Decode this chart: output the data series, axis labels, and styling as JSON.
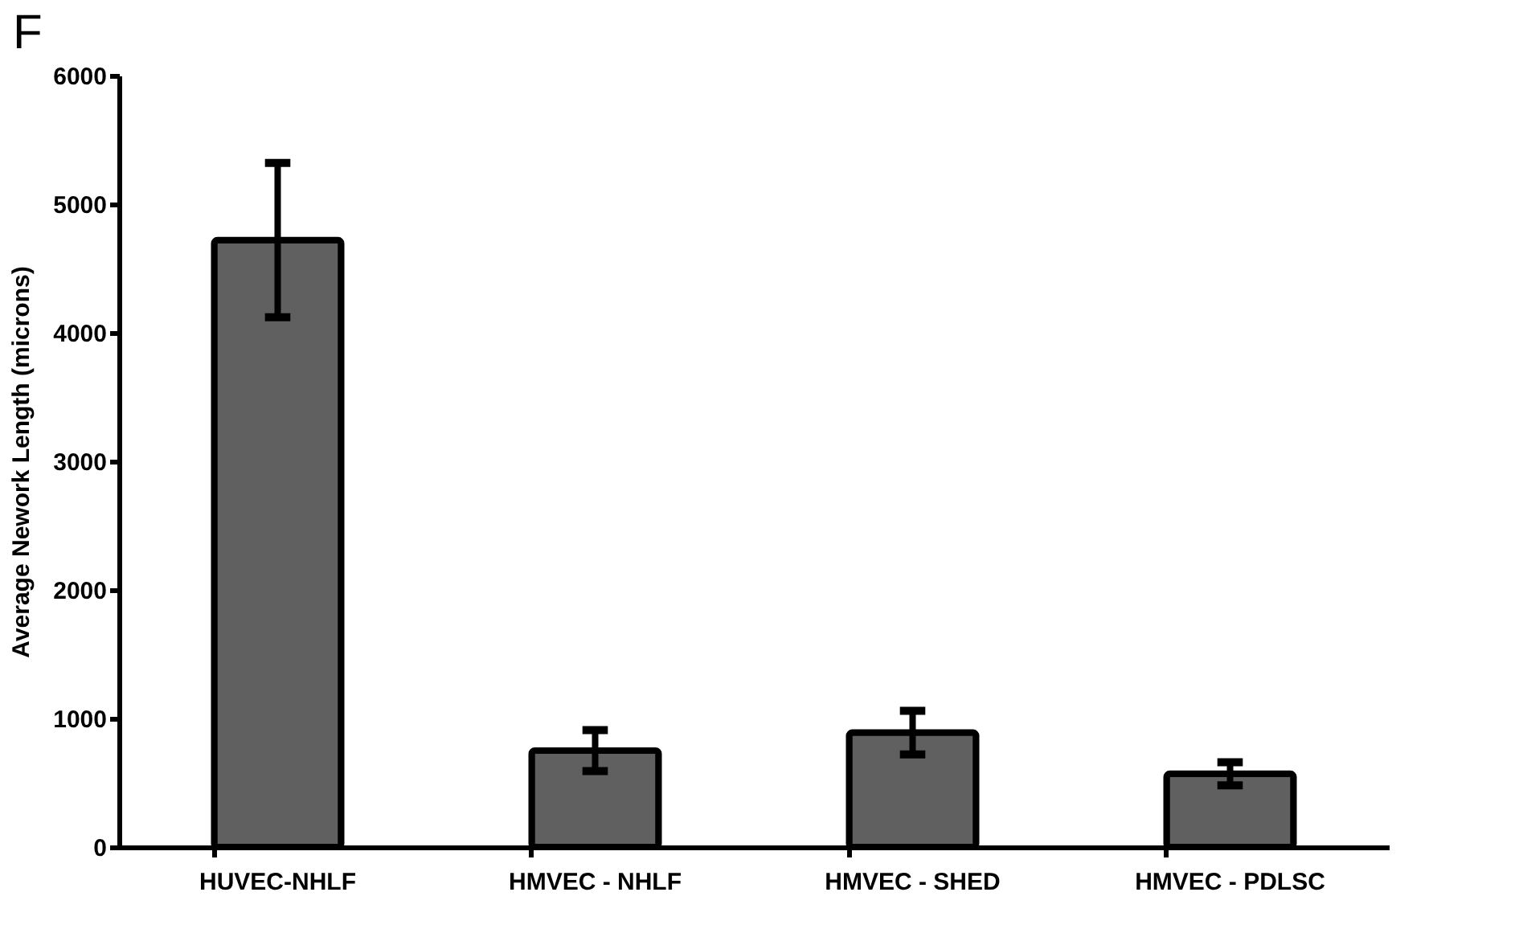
{
  "chart_data": {
    "type": "bar",
    "annotations": [
      "F"
    ],
    "ylabel": "Average Nework Length (microns)",
    "categories": [
      "HUVEC-NHLF",
      "HMVEC - NHLF",
      "HMVEC - SHED",
      "HMVEC - PDLSC"
    ],
    "values": [
      4720,
      750,
      890,
      570
    ],
    "errors": [
      600,
      160,
      170,
      90
    ],
    "color": "#606060",
    "ylim": [
      0,
      6000
    ],
    "yticks": [
      0,
      1000,
      2000,
      3000,
      4000,
      5000,
      6000
    ],
    "grid": false
  }
}
